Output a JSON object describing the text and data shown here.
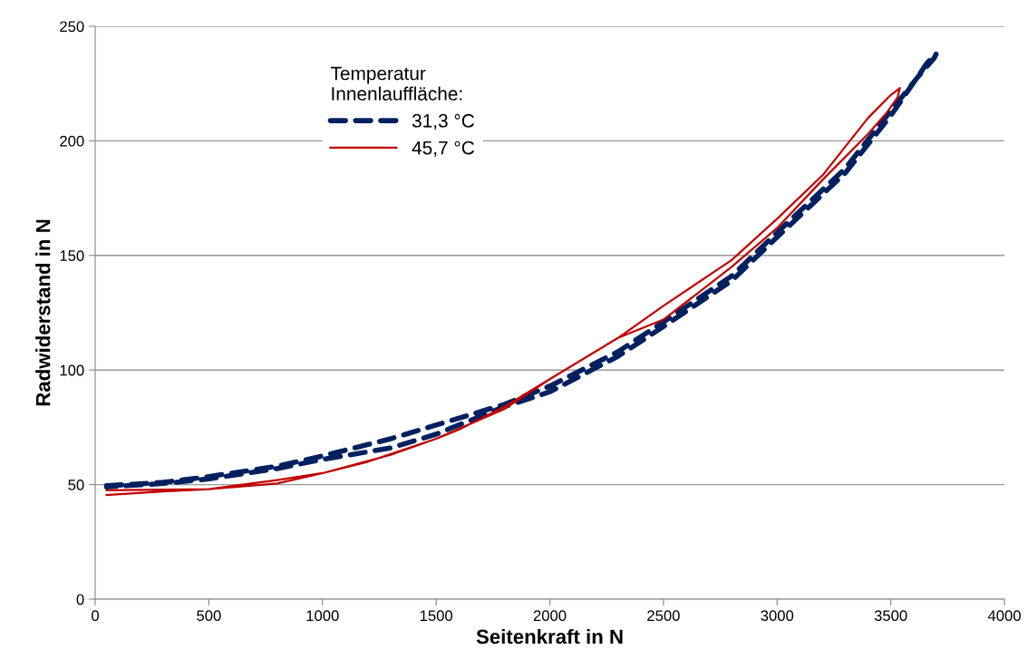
{
  "chart_data": {
    "type": "line",
    "xlabel": "Seitenkraft in N",
    "ylabel": "Radwiderstand in N",
    "legend_title": "Temperatur\nInnenlauffläche:",
    "legend": "top left",
    "grid": "y",
    "xlim": [
      0,
      4000
    ],
    "ylim": [
      0,
      250
    ],
    "xticks": [
      0,
      500,
      1000,
      1500,
      2000,
      2500,
      3000,
      3500,
      4000
    ],
    "yticks": [
      0,
      50,
      100,
      150,
      200,
      250
    ],
    "series": [
      {
        "name": "31,3 °C",
        "color": "#002060",
        "line_style": "dashed",
        "x": [
          50,
          300,
          500,
          800,
          1000,
          1300,
          1500,
          1800,
          2000,
          2300,
          2500,
          2800,
          3000,
          3300,
          3500,
          3620,
          3690,
          3700,
          3660,
          3500,
          3300,
          3000,
          2800,
          2500,
          2300,
          2000,
          1800,
          1500,
          1300,
          1000,
          800,
          500,
          300,
          50
        ],
        "values": [
          49.5,
          51,
          53.5,
          58,
          62.5,
          70,
          76,
          85,
          93,
          108,
          121,
          141,
          160,
          188,
          213,
          228,
          236,
          238,
          234,
          211,
          186,
          158,
          139,
          119,
          106,
          90.5,
          84,
          72,
          66,
          61,
          57,
          52.5,
          50.5,
          49
        ]
      },
      {
        "name": "45,7 °C",
        "color": "#c00000",
        "line_style": "solid",
        "x": [
          50,
          300,
          500,
          800,
          1000,
          1200,
          1500,
          1800,
          2000,
          2300,
          2500,
          2800,
          3000,
          3200,
          3400,
          3500,
          3540,
          3530,
          3480,
          3400,
          3200,
          3000,
          2800,
          2500,
          2300,
          2100,
          2000,
          1800,
          1600,
          1500,
          1300,
          1000,
          800,
          500,
          300,
          50
        ],
        "values": [
          47.5,
          47.8,
          48,
          50.5,
          55,
          60,
          70,
          83,
          96,
          114,
          128,
          148,
          166,
          185,
          210,
          220,
          223,
          219,
          212,
          203,
          183,
          162,
          145,
          122,
          114,
          102,
          96,
          84,
          74,
          70,
          63,
          55,
          52,
          48,
          47,
          45.5
        ]
      }
    ]
  }
}
